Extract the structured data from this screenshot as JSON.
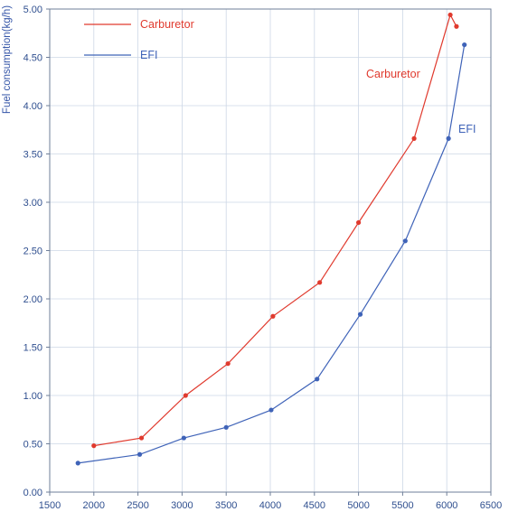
{
  "chart_data": {
    "type": "line",
    "ylabel": "Fuel consumption(kg/h)",
    "xlabel": "",
    "xlim": [
      1500,
      6500
    ],
    "ylim": [
      0,
      5
    ],
    "x_ticks": [
      "1500",
      "2000",
      "2500",
      "3000",
      "3500",
      "4000",
      "4500",
      "5000",
      "5500",
      "6000",
      "6500"
    ],
    "y_ticks": [
      "0.00",
      "0.50",
      "1.00",
      "1.50",
      "2.00",
      "2.50",
      "3.00",
      "3.50",
      "4.00",
      "4.50",
      "5.00"
    ],
    "grid": true,
    "legend_position": "top-left",
    "series": [
      {
        "name": "Carburetor",
        "color": "#e03a2e",
        "x": [
          2000,
          2540,
          3040,
          3520,
          4030,
          4560,
          5000,
          5630,
          6040,
          6110
        ],
        "y": [
          0.48,
          0.56,
          1.0,
          1.33,
          1.82,
          2.17,
          2.79,
          3.66,
          4.94,
          4.82
        ]
      },
      {
        "name": "EFI",
        "color": "#3f63b8",
        "x": [
          1820,
          2520,
          3020,
          3500,
          4010,
          4530,
          5020,
          5530,
          6020,
          6200
        ],
        "y": [
          0.3,
          0.39,
          0.56,
          0.67,
          0.85,
          1.17,
          1.84,
          2.6,
          3.66,
          4.63
        ]
      }
    ],
    "annotations": [
      {
        "text": "Carburetor",
        "color": "#e03a2e"
      },
      {
        "text": "EFI",
        "color": "#3f63b8"
      }
    ]
  }
}
